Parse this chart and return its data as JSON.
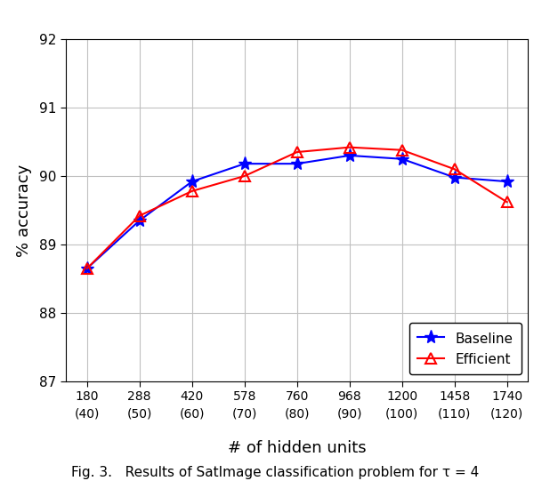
{
  "x_positions": [
    0,
    1,
    2,
    3,
    4,
    5,
    6,
    7,
    8
  ],
  "x_labels_top": [
    "180",
    "288",
    "420",
    "578",
    "760",
    "968",
    "1200",
    "1458",
    "1740"
  ],
  "x_labels_bottom": [
    "(40)",
    "(50)",
    "(60)",
    "(70)",
    "(80)",
    "(90)",
    "(100)",
    "(110)",
    "(120)"
  ],
  "baseline_y": [
    88.65,
    89.35,
    89.92,
    90.18,
    90.18,
    90.3,
    90.25,
    89.98,
    89.92
  ],
  "efficient_y": [
    88.65,
    89.42,
    89.78,
    90.0,
    90.35,
    90.42,
    90.38,
    90.1,
    89.62
  ],
  "baseline_color": "#0000FF",
  "efficient_color": "#FF0000",
  "ylabel": "% accuracy",
  "xlabel": "# of hidden units",
  "ylim": [
    87,
    92
  ],
  "yticks": [
    87,
    88,
    89,
    90,
    91,
    92
  ],
  "legend_labels": [
    "Baseline",
    "Efficient"
  ],
  "background_color": "#ffffff",
  "grid_color": "#c0c0c0",
  "caption": "Fig. 3.   Results of SatImage classification problem for τ = 4"
}
